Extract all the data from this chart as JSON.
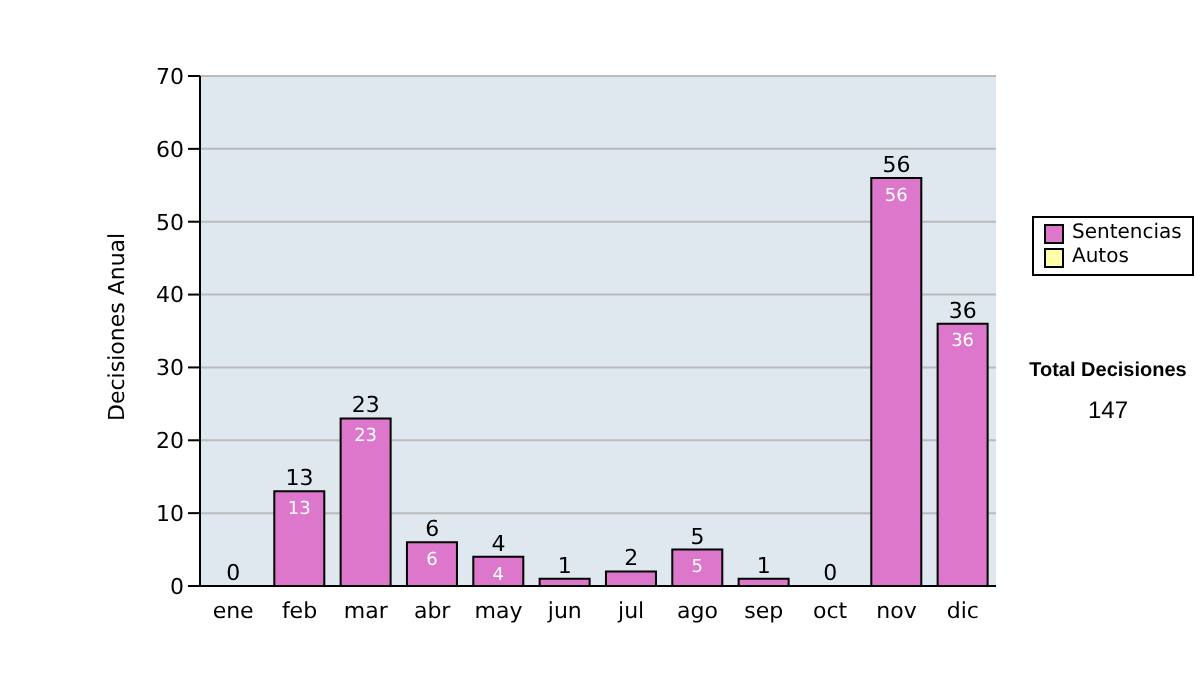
{
  "chart_data": {
    "type": "bar",
    "stacked": true,
    "ylabel": "Decisiones Anual",
    "categories": [
      "ene",
      "feb",
      "mar",
      "abr",
      "may",
      "jun",
      "jul",
      "ago",
      "sep",
      "oct",
      "nov",
      "dic"
    ],
    "series": [
      {
        "name": "Sentencias",
        "color": "#dd77cc",
        "values": [
          0,
          13,
          23,
          6,
          4,
          1,
          2,
          5,
          1,
          0,
          56,
          36
        ],
        "value_labels": [
          null,
          "13",
          "23",
          "6",
          "4",
          null,
          null,
          "5",
          null,
          null,
          "56",
          "36"
        ]
      },
      {
        "name": "Autos",
        "color": "#ffffaa",
        "values": [
          0,
          0,
          0,
          0,
          0,
          0,
          0,
          0,
          0,
          0,
          0,
          0
        ]
      }
    ],
    "totals": [
      "0",
      "13",
      "23",
      "6",
      "4",
      "1",
      "2",
      "5",
      "1",
      "0",
      "56",
      "36"
    ],
    "ylim": [
      0,
      70
    ],
    "yticks": [
      0,
      10,
      20,
      30,
      40,
      50,
      60,
      70
    ],
    "grid": "y",
    "legend": "right",
    "annotations": [
      "Total Decisiones",
      "147"
    ]
  }
}
